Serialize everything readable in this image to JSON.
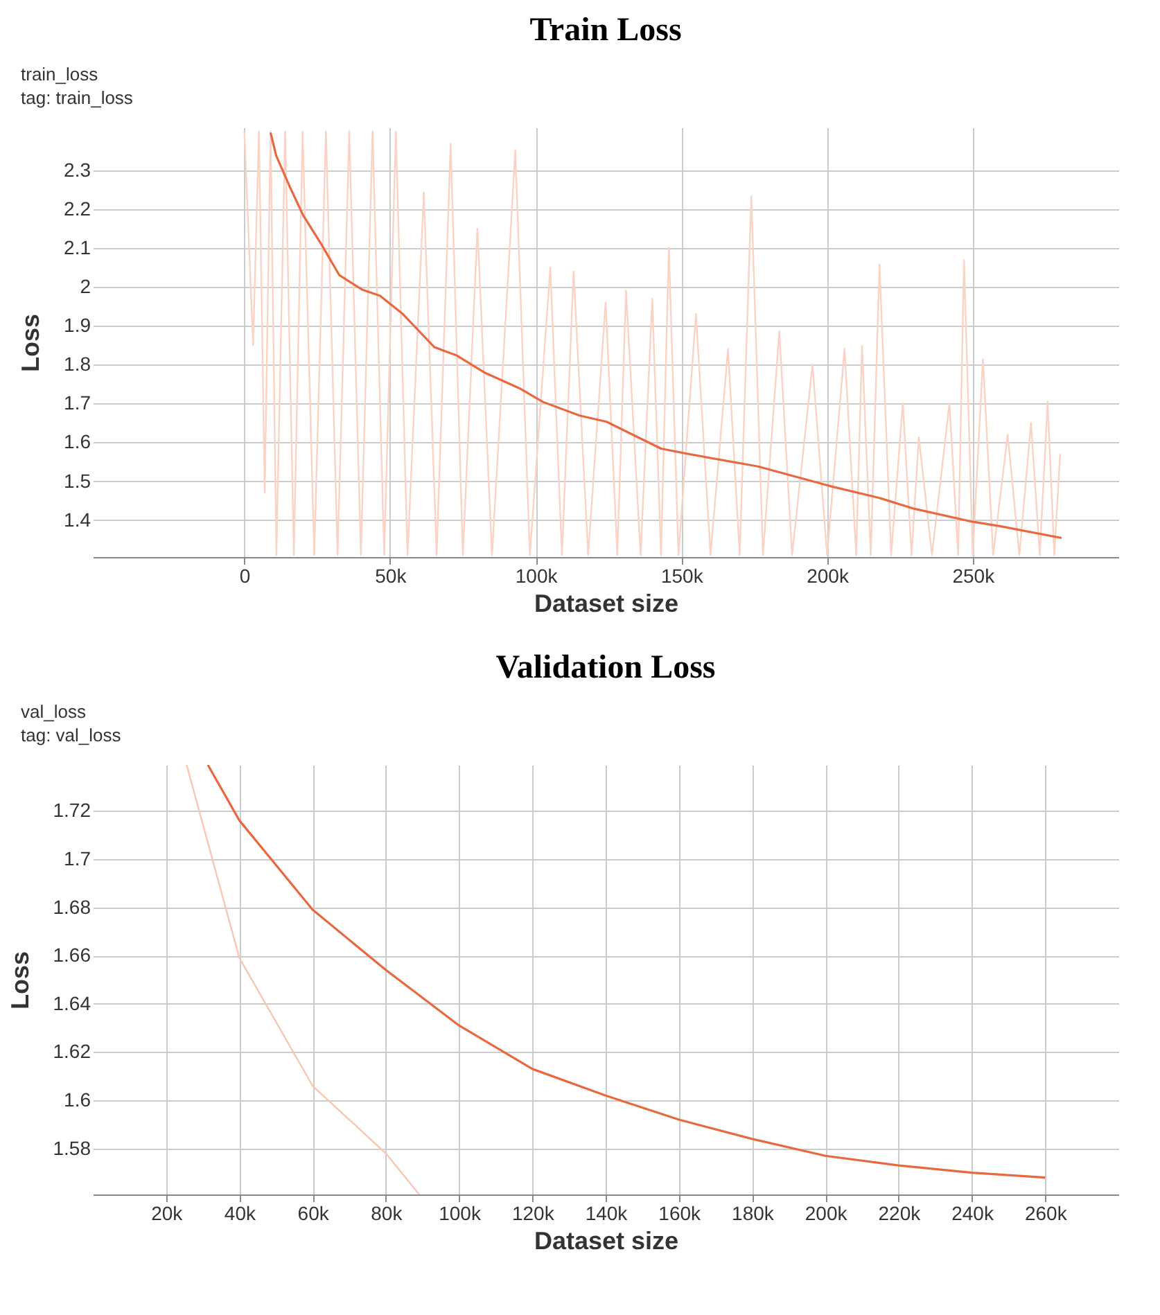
{
  "chart_data": [
    {
      "type": "line",
      "title": "Train Loss",
      "xlabel": "Dataset size",
      "ylabel": "Loss",
      "annotations": [
        "train_loss",
        "tag: train_loss"
      ],
      "xlim": [
        -52000,
        300000
      ],
      "ylim": [
        1.305,
        2.41
      ],
      "grid": true,
      "xticks": [
        0,
        {
          "value": 50000,
          "label": "50k"
        },
        {
          "value": 100000,
          "label": "100k"
        },
        {
          "value": 150000,
          "label": "150k"
        },
        {
          "value": 200000,
          "label": "200k"
        },
        {
          "value": 250000,
          "label": "250k"
        }
      ],
      "yticks": [
        1.4,
        1.5,
        1.6,
        1.7,
        1.8,
        1.9,
        2,
        2.1,
        2.2,
        2.3
      ],
      "series": [
        {
          "color": "#f9d3c5",
          "x": [
            0,
            3000,
            5000,
            7000,
            9000,
            11000,
            14000,
            17000,
            20000,
            24000,
            28000,
            32000,
            36000,
            40000,
            44000,
            48000,
            52000,
            56000,
            61600,
            66000,
            70800,
            75000,
            80000,
            85000,
            93000,
            98000,
            105000,
            109000,
            113000,
            118000,
            124000,
            128000,
            131000,
            136000,
            140000,
            143000,
            145700,
            149000,
            155000,
            160000,
            166000,
            170000,
            174000,
            178000,
            183600,
            188000,
            195000,
            200000,
            206000,
            210000,
            212000,
            215000,
            218000,
            222000,
            226000,
            229000,
            231500,
            236000,
            242000,
            245000,
            247000,
            250000,
            253500,
            257000,
            262000,
            266000,
            270000,
            273000,
            275700,
            278000,
            280000
          ],
          "values": [
            2.4,
            1.85,
            2.4,
            1.47,
            2.4,
            1.31,
            2.4,
            1.31,
            2.4,
            1.31,
            2.4,
            1.31,
            2.4,
            1.31,
            2.4,
            1.31,
            2.4,
            1.31,
            2.243,
            1.31,
            2.368,
            1.31,
            2.15,
            1.31,
            2.351,
            1.31,
            2.05,
            1.31,
            2.04,
            1.31,
            1.96,
            1.31,
            1.99,
            1.31,
            1.97,
            1.31,
            2.1,
            1.31,
            1.93,
            1.31,
            1.84,
            1.31,
            2.233,
            1.31,
            1.886,
            1.31,
            1.8,
            1.31,
            1.84,
            1.31,
            1.848,
            1.31,
            2.057,
            1.31,
            1.7,
            1.31,
            1.613,
            1.31,
            1.7,
            1.31,
            2.069,
            1.31,
            1.814,
            1.31,
            1.62,
            1.31,
            1.65,
            1.31,
            1.705,
            1.31,
            1.57
          ]
        },
        {
          "color": "#e8683f",
          "x": [
            9000,
            10900,
            15500,
            20200,
            26400,
            32600,
            40400,
            46600,
            54400,
            65200,
            73000,
            82300,
            94700,
            102500,
            115000,
            124300,
            143000,
            151800,
            176300,
            200800,
            218000,
            230000,
            249800,
            259600,
            280500
          ],
          "values": [
            2.397,
            2.338,
            2.259,
            2.184,
            2.11,
            2.03,
            1.993,
            1.977,
            1.93,
            1.845,
            1.823,
            1.78,
            1.738,
            1.704,
            1.669,
            1.653,
            1.584,
            1.571,
            1.538,
            1.488,
            1.457,
            1.429,
            1.396,
            1.384,
            1.354
          ]
        }
      ]
    },
    {
      "type": "line",
      "title": "Validation Loss",
      "xlabel": "Dataset size",
      "ylabel": "Loss",
      "annotations": [
        "val_loss",
        "tag: val_loss"
      ],
      "xlim": [
        0,
        280000
      ],
      "ylim": [
        1.561,
        1.739
      ],
      "grid": true,
      "xticks": [
        {
          "value": 20000,
          "label": "20k"
        },
        {
          "value": 40000,
          "label": "40k"
        },
        {
          "value": 60000,
          "label": "60k"
        },
        {
          "value": 80000,
          "label": "80k"
        },
        {
          "value": 100000,
          "label": "100k"
        },
        {
          "value": 120000,
          "label": "120k"
        },
        {
          "value": 140000,
          "label": "140k"
        },
        {
          "value": 160000,
          "label": "160k"
        },
        {
          "value": 180000,
          "label": "180k"
        },
        {
          "value": 200000,
          "label": "200k"
        },
        {
          "value": 220000,
          "label": "220k"
        },
        {
          "value": 240000,
          "label": "240k"
        },
        {
          "value": 260000,
          "label": "260k"
        }
      ],
      "yticks": [
        1.58,
        1.6,
        1.62,
        1.64,
        1.66,
        1.68,
        1.7,
        1.72
      ],
      "series": [
        {
          "color": "#f5c8b5",
          "x": [
            25600,
            40000,
            60000,
            80000,
            89100
          ],
          "values": [
            1.739,
            1.659,
            1.606,
            1.578,
            1.561
          ]
        },
        {
          "color": "#e8683f",
          "x": [
            31400,
            40000,
            60000,
            80000,
            100000,
            120000,
            140000,
            160000,
            180000,
            200000,
            220000,
            240000,
            260000
          ],
          "values": [
            1.739,
            1.716,
            1.679,
            1.654,
            1.631,
            1.613,
            1.602,
            1.592,
            1.584,
            1.577,
            1.573,
            1.57,
            1.568
          ]
        }
      ]
    }
  ]
}
